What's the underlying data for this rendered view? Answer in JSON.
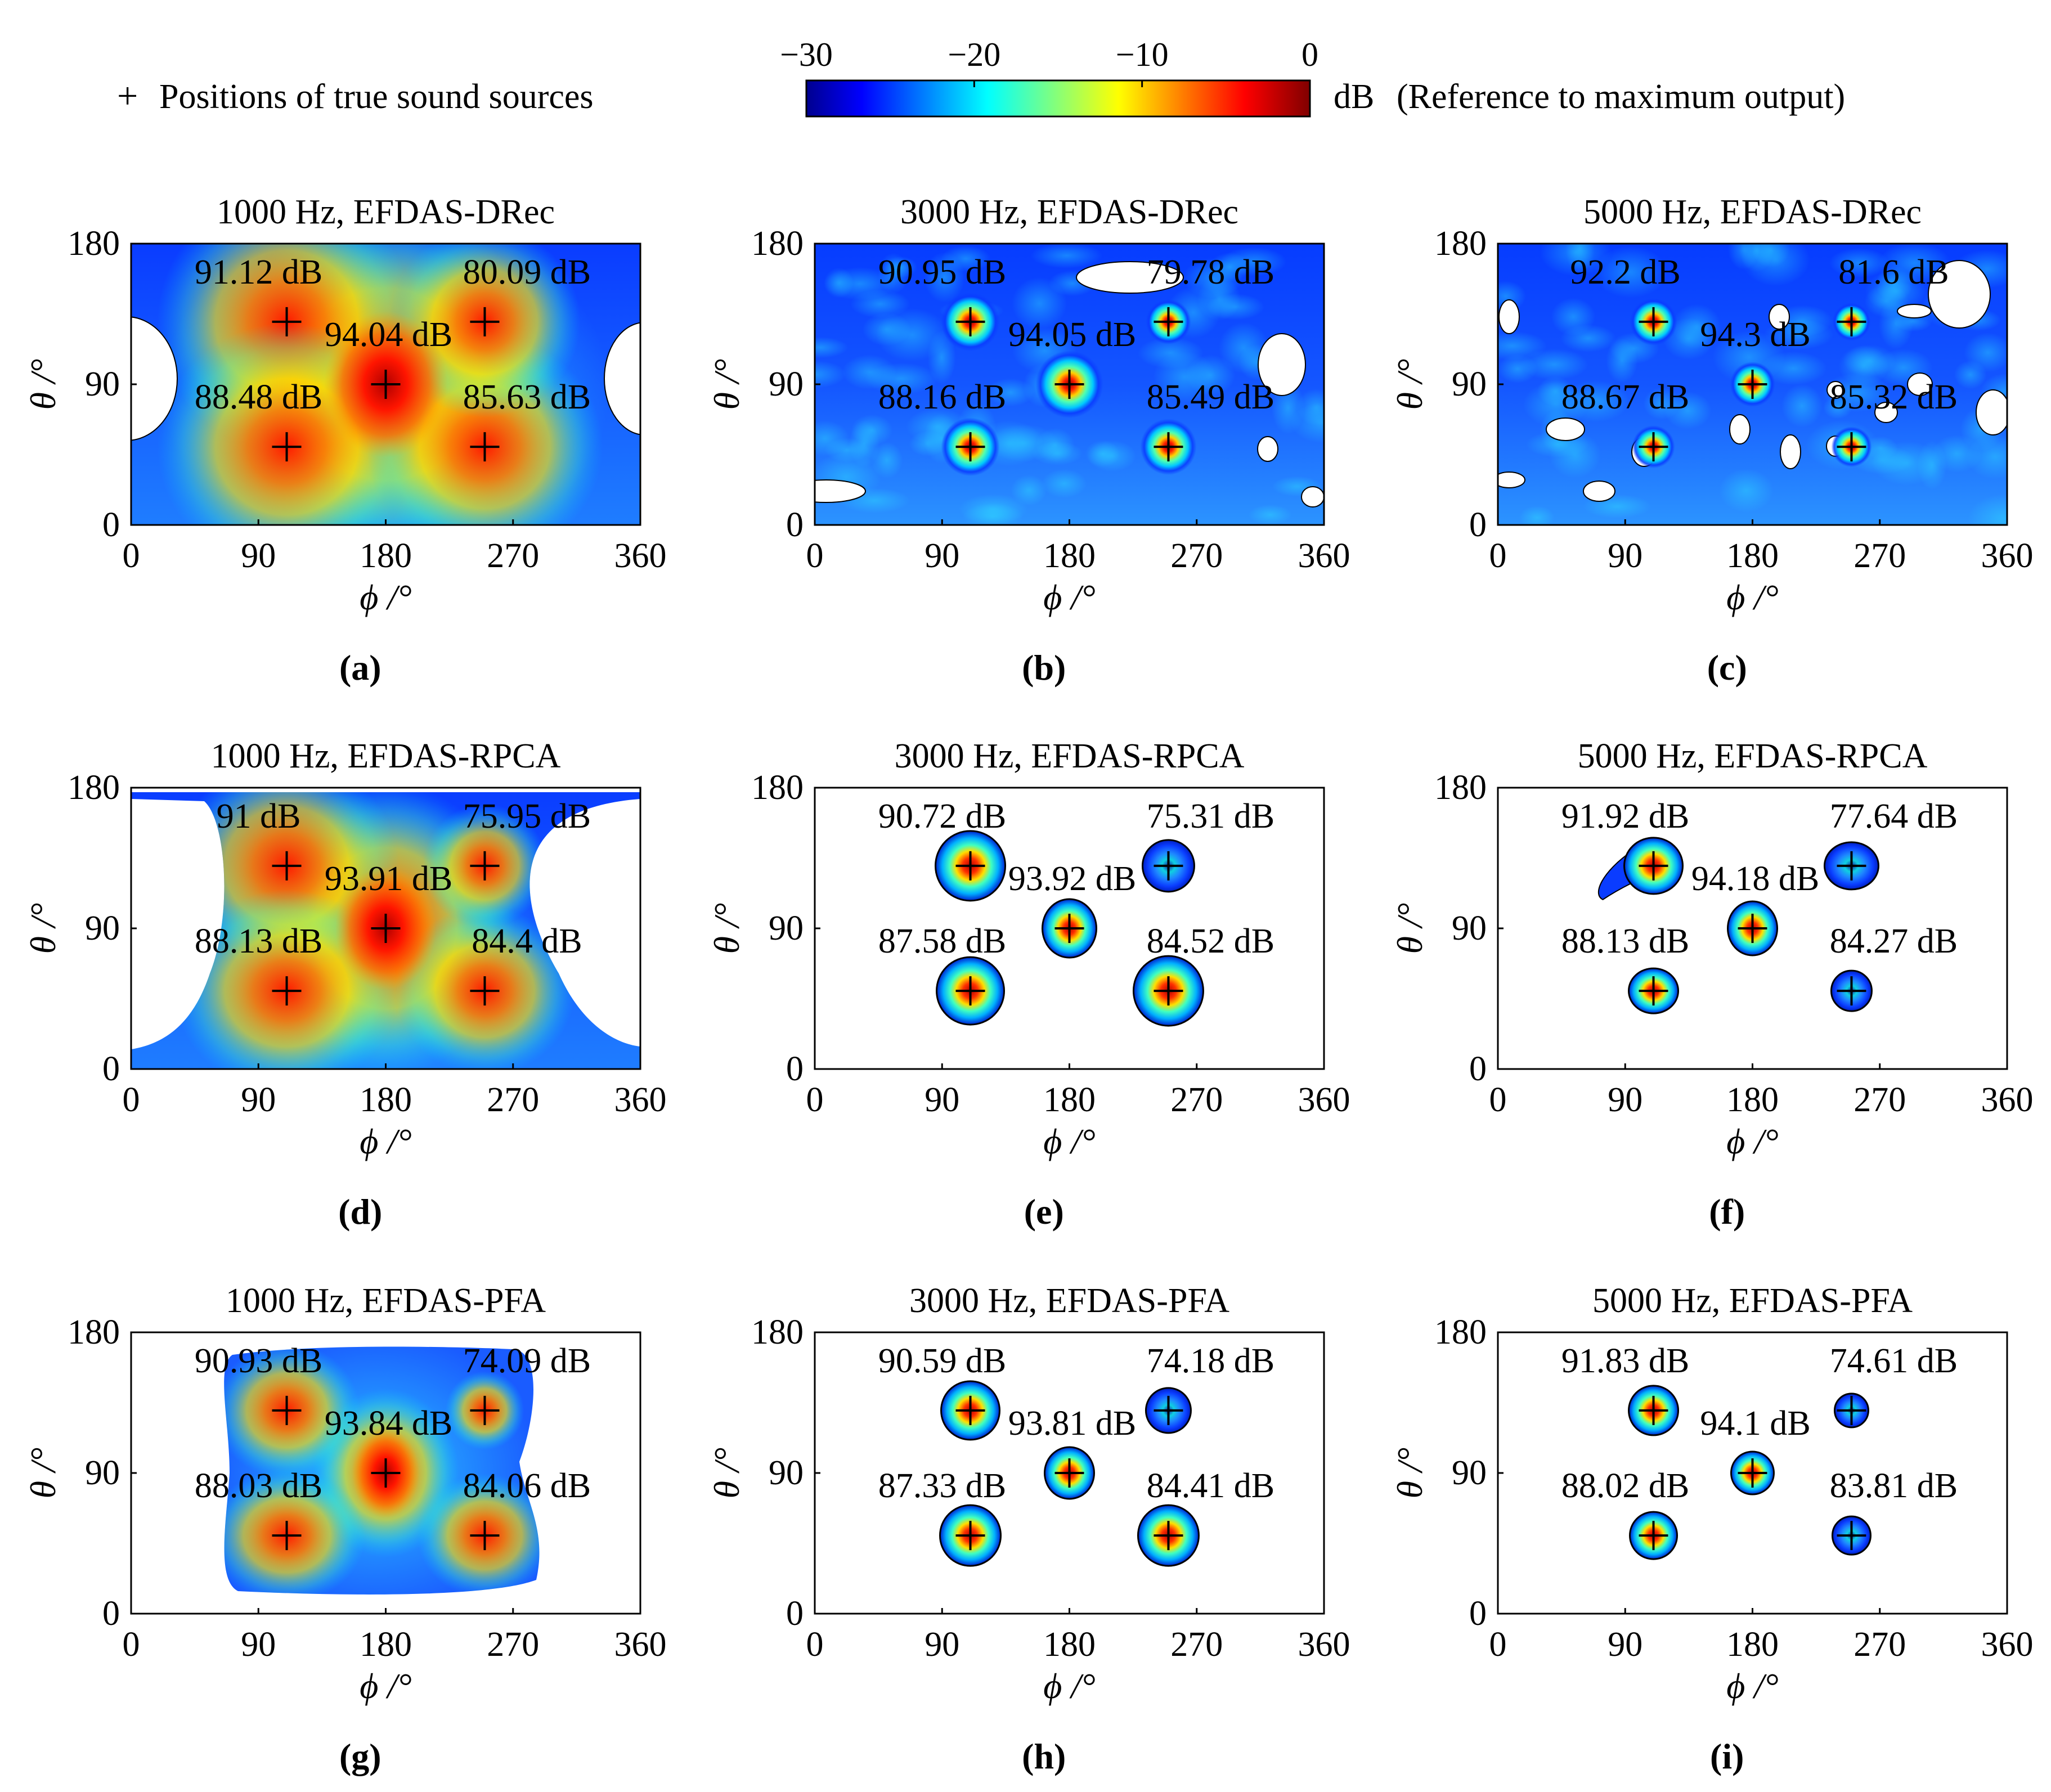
{
  "legend": {
    "marker_symbol": "+",
    "marker_text": "Positions of true sound sources"
  },
  "colorbar": {
    "ticks": [
      "−30",
      "−20",
      "−10",
      "0"
    ],
    "tick_values": [
      -30,
      -20,
      -10,
      0
    ],
    "unit": "dB",
    "note": "(Reference to maximum output)",
    "colormap": "jet"
  },
  "chart_data": [
    {
      "type": "heatmap",
      "id": "a",
      "title": "1000 Hz, EFDAS-DRec",
      "caption": "(a)",
      "xlabel": "ϕ /°",
      "ylabel": "θ /°",
      "xlim": [
        0,
        360
      ],
      "ylim": [
        0,
        180
      ],
      "xticks": [
        "0",
        "90",
        "180",
        "270",
        "360"
      ],
      "yticks": [
        "0",
        "90",
        "180"
      ],
      "sources": [
        {
          "phi": 110,
          "theta": 130,
          "label": "91.12 dB"
        },
        {
          "phi": 250,
          "theta": 130,
          "label": "80.09 dB"
        },
        {
          "phi": 180,
          "theta": 90,
          "label": "94.04 dB"
        },
        {
          "phi": 110,
          "theta": 50,
          "label": "88.48 dB"
        },
        {
          "phi": 250,
          "theta": 50,
          "label": "85.63 dB"
        }
      ]
    },
    {
      "type": "heatmap",
      "id": "b",
      "title": "3000 Hz, EFDAS-DRec",
      "caption": "(b)",
      "xlabel": "ϕ /°",
      "ylabel": "θ /°",
      "xlim": [
        0,
        360
      ],
      "ylim": [
        0,
        180
      ],
      "xticks": [
        "0",
        "90",
        "180",
        "270",
        "360"
      ],
      "yticks": [
        "0",
        "90",
        "180"
      ],
      "sources": [
        {
          "phi": 110,
          "theta": 130,
          "label": "90.95 dB"
        },
        {
          "phi": 250,
          "theta": 130,
          "label": "79.78 dB"
        },
        {
          "phi": 180,
          "theta": 90,
          "label": "94.05 dB"
        },
        {
          "phi": 110,
          "theta": 50,
          "label": "88.16 dB"
        },
        {
          "phi": 250,
          "theta": 50,
          "label": "85.49 dB"
        }
      ]
    },
    {
      "type": "heatmap",
      "id": "c",
      "title": "5000 Hz, EFDAS-DRec",
      "caption": "(c)",
      "xlabel": "ϕ /°",
      "ylabel": "θ /°",
      "xlim": [
        0,
        360
      ],
      "ylim": [
        0,
        180
      ],
      "xticks": [
        "0",
        "90",
        "180",
        "270",
        "360"
      ],
      "yticks": [
        "0",
        "90",
        "180"
      ],
      "sources": [
        {
          "phi": 110,
          "theta": 130,
          "label": "92.2 dB"
        },
        {
          "phi": 250,
          "theta": 130,
          "label": "81.6 dB"
        },
        {
          "phi": 180,
          "theta": 90,
          "label": "94.3 dB"
        },
        {
          "phi": 110,
          "theta": 50,
          "label": "88.67 dB"
        },
        {
          "phi": 250,
          "theta": 50,
          "label": "85.32 dB"
        }
      ]
    },
    {
      "type": "heatmap",
      "id": "d",
      "title": "1000 Hz, EFDAS-RPCA",
      "caption": "(d)",
      "xlabel": "ϕ /°",
      "ylabel": "θ /°",
      "xlim": [
        0,
        360
      ],
      "ylim": [
        0,
        180
      ],
      "xticks": [
        "0",
        "90",
        "180",
        "270",
        "360"
      ],
      "yticks": [
        "0",
        "90",
        "180"
      ],
      "sources": [
        {
          "phi": 110,
          "theta": 130,
          "label": "91 dB"
        },
        {
          "phi": 250,
          "theta": 130,
          "label": "75.95 dB"
        },
        {
          "phi": 180,
          "theta": 90,
          "label": "93.91 dB"
        },
        {
          "phi": 110,
          "theta": 50,
          "label": "88.13 dB"
        },
        {
          "phi": 250,
          "theta": 50,
          "label": "84.4 dB"
        }
      ]
    },
    {
      "type": "heatmap",
      "id": "e",
      "title": "3000 Hz, EFDAS-RPCA",
      "caption": "(e)",
      "xlabel": "ϕ /°",
      "ylabel": "θ /°",
      "xlim": [
        0,
        360
      ],
      "ylim": [
        0,
        180
      ],
      "xticks": [
        "0",
        "90",
        "180",
        "270",
        "360"
      ],
      "yticks": [
        "0",
        "90",
        "180"
      ],
      "sources": [
        {
          "phi": 110,
          "theta": 130,
          "label": "90.72 dB"
        },
        {
          "phi": 250,
          "theta": 130,
          "label": "75.31 dB"
        },
        {
          "phi": 180,
          "theta": 90,
          "label": "93.92 dB"
        },
        {
          "phi": 110,
          "theta": 50,
          "label": "87.58 dB"
        },
        {
          "phi": 250,
          "theta": 50,
          "label": "84.52 dB"
        }
      ]
    },
    {
      "type": "heatmap",
      "id": "f",
      "title": "5000 Hz, EFDAS-RPCA",
      "caption": "(f)",
      "xlabel": "ϕ /°",
      "ylabel": "θ /°",
      "xlim": [
        0,
        360
      ],
      "ylim": [
        0,
        180
      ],
      "xticks": [
        "0",
        "90",
        "180",
        "270",
        "360"
      ],
      "yticks": [
        "0",
        "90",
        "180"
      ],
      "sources": [
        {
          "phi": 110,
          "theta": 130,
          "label": "91.92 dB"
        },
        {
          "phi": 250,
          "theta": 130,
          "label": "77.64 dB"
        },
        {
          "phi": 180,
          "theta": 90,
          "label": "94.18 dB"
        },
        {
          "phi": 110,
          "theta": 50,
          "label": "88.13 dB"
        },
        {
          "phi": 250,
          "theta": 50,
          "label": "84.27 dB"
        }
      ]
    },
    {
      "type": "heatmap",
      "id": "g",
      "title": "1000 Hz, EFDAS-PFA",
      "caption": "(g)",
      "xlabel": "ϕ /°",
      "ylabel": "θ /°",
      "xlim": [
        0,
        360
      ],
      "ylim": [
        0,
        180
      ],
      "xticks": [
        "0",
        "90",
        "180",
        "270",
        "360"
      ],
      "yticks": [
        "0",
        "90",
        "180"
      ],
      "sources": [
        {
          "phi": 110,
          "theta": 130,
          "label": "90.93 dB"
        },
        {
          "phi": 250,
          "theta": 130,
          "label": "74.09 dB"
        },
        {
          "phi": 180,
          "theta": 90,
          "label": "93.84 dB"
        },
        {
          "phi": 110,
          "theta": 50,
          "label": "88.03 dB"
        },
        {
          "phi": 250,
          "theta": 50,
          "label": "84.06 dB"
        }
      ]
    },
    {
      "type": "heatmap",
      "id": "h",
      "title": "3000 Hz, EFDAS-PFA",
      "caption": "(h)",
      "xlabel": "ϕ /°",
      "ylabel": "θ /°",
      "xlim": [
        0,
        360
      ],
      "ylim": [
        0,
        180
      ],
      "xticks": [
        "0",
        "90",
        "180",
        "270",
        "360"
      ],
      "yticks": [
        "0",
        "90",
        "180"
      ],
      "sources": [
        {
          "phi": 110,
          "theta": 130,
          "label": "90.59 dB"
        },
        {
          "phi": 250,
          "theta": 130,
          "label": "74.18 dB"
        },
        {
          "phi": 180,
          "theta": 90,
          "label": "93.81 dB"
        },
        {
          "phi": 110,
          "theta": 50,
          "label": "87.33 dB"
        },
        {
          "phi": 250,
          "theta": 50,
          "label": "84.41 dB"
        }
      ]
    },
    {
      "type": "heatmap",
      "id": "i",
      "title": "5000 Hz, EFDAS-PFA",
      "caption": "(i)",
      "xlabel": "ϕ /°",
      "ylabel": "θ /°",
      "xlim": [
        0,
        360
      ],
      "ylim": [
        0,
        180
      ],
      "xticks": [
        "0",
        "90",
        "180",
        "270",
        "360"
      ],
      "yticks": [
        "0",
        "90",
        "180"
      ],
      "sources": [
        {
          "phi": 110,
          "theta": 130,
          "label": "91.83 dB"
        },
        {
          "phi": 250,
          "theta": 130,
          "label": "74.61 dB"
        },
        {
          "phi": 180,
          "theta": 90,
          "label": "94.1 dB"
        },
        {
          "phi": 110,
          "theta": 50,
          "label": "88.02 dB"
        },
        {
          "phi": 250,
          "theta": 50,
          "label": "83.81 dB"
        }
      ]
    }
  ]
}
